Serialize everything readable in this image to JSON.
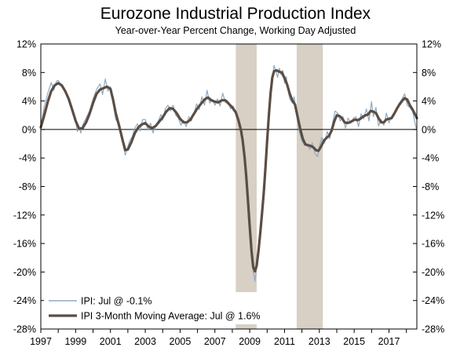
{
  "chart_data": {
    "type": "line",
    "title": "Eurozone Industrial Production Index",
    "subtitle": "Year-over-Year Percent Change, Working Day Adjusted",
    "xlabel": "",
    "ylabel": "",
    "ylim": [
      -28,
      12
    ],
    "y_ticks": [
      12,
      8,
      4,
      0,
      -4,
      -8,
      -12,
      -16,
      -20,
      -24,
      -28
    ],
    "y_tick_labels": [
      "12%",
      "8%",
      "4%",
      "0%",
      "-4%",
      "-8%",
      "-12%",
      "-16%",
      "-20%",
      "-24%",
      "-28%"
    ],
    "xlim": [
      1997.0,
      2018.6
    ],
    "x_ticks": [
      1997,
      1999,
      2001,
      2003,
      2005,
      2007,
      2009,
      2011,
      2013,
      2015,
      2017
    ],
    "x_tick_labels": [
      "1997",
      "1999",
      "2001",
      "2003",
      "2005",
      "2007",
      "2009",
      "2011",
      "2013",
      "2015",
      "2017"
    ],
    "recessions": [
      {
        "start": 2008.2,
        "end": 2009.4
      },
      {
        "start": 2011.7,
        "end": 2013.2
      }
    ],
    "legend_position": "bottom-left",
    "series": [
      {
        "name": "IPI: Jul @ -0.1%",
        "color": "#8eaac4",
        "style": "thin",
        "points": [
          [
            1997.0,
            0.6
          ],
          [
            1997.2,
            3.2
          ],
          [
            1997.4,
            5.1
          ],
          [
            1997.6,
            6.6
          ],
          [
            1997.75,
            5.5
          ],
          [
            1997.9,
            6.8
          ],
          [
            1998.0,
            6.9
          ],
          [
            1998.2,
            6.0
          ],
          [
            1998.4,
            5.5
          ],
          [
            1998.6,
            4.4
          ],
          [
            1998.8,
            2.9
          ],
          [
            1999.0,
            1.1
          ],
          [
            1999.1,
            -0.3
          ],
          [
            1999.2,
            0.3
          ],
          [
            1999.3,
            -0.5
          ],
          [
            1999.4,
            0.6
          ],
          [
            1999.6,
            1.6
          ],
          [
            1999.8,
            2.6
          ],
          [
            2000.0,
            4.3
          ],
          [
            2000.2,
            5.6
          ],
          [
            2000.4,
            6.4
          ],
          [
            2000.55,
            4.9
          ],
          [
            2000.7,
            7.1
          ],
          [
            2000.85,
            5.4
          ],
          [
            2001.0,
            6.0
          ],
          [
            2001.15,
            3.9
          ],
          [
            2001.3,
            1.4
          ],
          [
            2001.4,
            1.1
          ],
          [
            2001.55,
            -0.4
          ],
          [
            2001.7,
            -1.9
          ],
          [
            2001.85,
            -3.6
          ],
          [
            2001.95,
            -2.8
          ],
          [
            2002.1,
            -1.6
          ],
          [
            2002.25,
            -1.0
          ],
          [
            2002.4,
            0.2
          ],
          [
            2002.55,
            0.8
          ],
          [
            2002.7,
            -0.2
          ],
          [
            2002.85,
            1.4
          ],
          [
            2003.0,
            1.4
          ],
          [
            2003.15,
            -0.1
          ],
          [
            2003.3,
            0.9
          ],
          [
            2003.45,
            -0.5
          ],
          [
            2003.6,
            0.6
          ],
          [
            2003.75,
            1.2
          ],
          [
            2003.9,
            2.1
          ],
          [
            2004.0,
            1.3
          ],
          [
            2004.15,
            2.9
          ],
          [
            2004.3,
            3.4
          ],
          [
            2004.45,
            2.6
          ],
          [
            2004.6,
            3.4
          ],
          [
            2004.75,
            2.0
          ],
          [
            2004.9,
            1.6
          ],
          [
            2005.05,
            0.6
          ],
          [
            2005.2,
            1.3
          ],
          [
            2005.35,
            0.4
          ],
          [
            2005.5,
            1.8
          ],
          [
            2005.65,
            1.2
          ],
          [
            2005.8,
            2.3
          ],
          [
            2005.95,
            3.6
          ],
          [
            2006.1,
            2.8
          ],
          [
            2006.25,
            4.6
          ],
          [
            2006.4,
            3.4
          ],
          [
            2006.55,
            5.5
          ],
          [
            2006.7,
            3.7
          ],
          [
            2006.85,
            4.2
          ],
          [
            2007.0,
            3.4
          ],
          [
            2007.15,
            4.3
          ],
          [
            2007.3,
            3.3
          ],
          [
            2007.45,
            5.1
          ],
          [
            2007.6,
            3.8
          ],
          [
            2007.75,
            4.0
          ],
          [
            2007.9,
            2.9
          ],
          [
            2008.05,
            3.3
          ],
          [
            2008.2,
            2.3
          ],
          [
            2008.35,
            1.2
          ],
          [
            2008.5,
            -0.8
          ],
          [
            2008.6,
            -1.8
          ],
          [
            2008.7,
            -4.6
          ],
          [
            2008.8,
            -7.5
          ],
          [
            2008.9,
            -11.2
          ],
          [
            2009.0,
            -14.7
          ],
          [
            2009.1,
            -18.1
          ],
          [
            2009.2,
            -19.9
          ],
          [
            2009.3,
            -21.3
          ],
          [
            2009.4,
            -19.3
          ],
          [
            2009.5,
            -17.0
          ],
          [
            2009.6,
            -14.8
          ],
          [
            2009.7,
            -12.2
          ],
          [
            2009.8,
            -9.3
          ],
          [
            2009.9,
            -5.5
          ],
          [
            2010.0,
            -1.4
          ],
          [
            2010.1,
            2.2
          ],
          [
            2010.2,
            5.5
          ],
          [
            2010.3,
            7.3
          ],
          [
            2010.4,
            9.0
          ],
          [
            2010.5,
            8.2
          ],
          [
            2010.6,
            7.3
          ],
          [
            2010.7,
            8.6
          ],
          [
            2010.8,
            7.7
          ],
          [
            2010.9,
            8.3
          ],
          [
            2011.0,
            6.5
          ],
          [
            2011.1,
            7.4
          ],
          [
            2011.2,
            5.5
          ],
          [
            2011.3,
            4.3
          ],
          [
            2011.45,
            3.7
          ],
          [
            2011.55,
            4.6
          ],
          [
            2011.7,
            1.9
          ],
          [
            2011.85,
            -0.3
          ],
          [
            2012.0,
            -1.6
          ],
          [
            2012.15,
            -2.2
          ],
          [
            2012.3,
            -2.0
          ],
          [
            2012.45,
            -2.8
          ],
          [
            2012.6,
            -1.9
          ],
          [
            2012.75,
            -3.4
          ],
          [
            2012.9,
            -3.8
          ],
          [
            2013.0,
            -2.4
          ],
          [
            2013.15,
            -1.1
          ],
          [
            2013.3,
            -1.9
          ],
          [
            2013.45,
            -0.3
          ],
          [
            2013.6,
            -1.3
          ],
          [
            2013.75,
            0.7
          ],
          [
            2013.9,
            2.6
          ],
          [
            2014.05,
            2.3
          ],
          [
            2014.2,
            1.2
          ],
          [
            2014.35,
            1.8
          ],
          [
            2014.5,
            0.2
          ],
          [
            2014.65,
            1.6
          ],
          [
            2014.8,
            0.9
          ],
          [
            2014.95,
            1.6
          ],
          [
            2015.1,
            1.8
          ],
          [
            2015.25,
            0.4
          ],
          [
            2015.4,
            2.2
          ],
          [
            2015.55,
            1.5
          ],
          [
            2015.7,
            2.9
          ],
          [
            2015.85,
            1.2
          ],
          [
            2016.0,
            3.9
          ],
          [
            2016.1,
            1.8
          ],
          [
            2016.25,
            3.1
          ],
          [
            2016.4,
            0.5
          ],
          [
            2016.55,
            1.4
          ],
          [
            2016.7,
            0.6
          ],
          [
            2016.85,
            2.3
          ],
          [
            2017.0,
            0.9
          ],
          [
            2017.15,
            1.8
          ],
          [
            2017.3,
            2.4
          ],
          [
            2017.45,
            2.9
          ],
          [
            2017.6,
            3.7
          ],
          [
            2017.75,
            4.3
          ],
          [
            2017.9,
            5.0
          ],
          [
            2018.05,
            3.4
          ],
          [
            2018.2,
            3.1
          ],
          [
            2018.35,
            2.6
          ],
          [
            2018.5,
            0.8
          ],
          [
            2018.6,
            -0.1
          ]
        ]
      },
      {
        "name": "IPI 3-Month Moving Average: Jul @ 1.6%",
        "color": "#5a4d44",
        "style": "thick",
        "points": [
          [
            1997.0,
            0.3
          ],
          [
            1997.2,
            2.0
          ],
          [
            1997.4,
            3.9
          ],
          [
            1997.6,
            5.4
          ],
          [
            1997.8,
            6.2
          ],
          [
            1998.0,
            6.5
          ],
          [
            1998.2,
            6.2
          ],
          [
            1998.4,
            5.4
          ],
          [
            1998.6,
            4.3
          ],
          [
            1998.8,
            2.8
          ],
          [
            1999.0,
            1.2
          ],
          [
            1999.2,
            0.1
          ],
          [
            1999.4,
            0.2
          ],
          [
            1999.6,
            1.0
          ],
          [
            1999.8,
            2.2
          ],
          [
            2000.0,
            3.7
          ],
          [
            2000.2,
            5.0
          ],
          [
            2000.4,
            5.6
          ],
          [
            2000.6,
            5.8
          ],
          [
            2000.8,
            6.0
          ],
          [
            2001.0,
            5.7
          ],
          [
            2001.15,
            4.2
          ],
          [
            2001.3,
            2.3
          ],
          [
            2001.5,
            0.5
          ],
          [
            2001.7,
            -1.5
          ],
          [
            2001.85,
            -2.9
          ],
          [
            2002.0,
            -2.8
          ],
          [
            2002.2,
            -1.8
          ],
          [
            2002.4,
            -0.5
          ],
          [
            2002.6,
            0.3
          ],
          [
            2002.8,
            0.7
          ],
          [
            2003.0,
            0.9
          ],
          [
            2003.2,
            0.4
          ],
          [
            2003.4,
            0.2
          ],
          [
            2003.6,
            0.5
          ],
          [
            2003.8,
            1.1
          ],
          [
            2004.0,
            1.7
          ],
          [
            2004.2,
            2.5
          ],
          [
            2004.4,
            3.0
          ],
          [
            2004.6,
            2.9
          ],
          [
            2004.8,
            2.3
          ],
          [
            2005.0,
            1.5
          ],
          [
            2005.2,
            1.0
          ],
          [
            2005.4,
            1.0
          ],
          [
            2005.6,
            1.4
          ],
          [
            2005.8,
            2.2
          ],
          [
            2006.0,
            3.0
          ],
          [
            2006.2,
            3.6
          ],
          [
            2006.4,
            4.2
          ],
          [
            2006.6,
            4.5
          ],
          [
            2006.8,
            4.1
          ],
          [
            2007.0,
            3.9
          ],
          [
            2007.2,
            3.8
          ],
          [
            2007.4,
            4.1
          ],
          [
            2007.6,
            4.1
          ],
          [
            2007.8,
            3.6
          ],
          [
            2008.0,
            3.1
          ],
          [
            2008.2,
            2.4
          ],
          [
            2008.35,
            1.3
          ],
          [
            2008.5,
            -0.1
          ],
          [
            2008.6,
            -1.6
          ],
          [
            2008.7,
            -3.8
          ],
          [
            2008.8,
            -6.6
          ],
          [
            2008.9,
            -10.0
          ],
          [
            2009.0,
            -13.6
          ],
          [
            2009.1,
            -16.9
          ],
          [
            2009.2,
            -19.3
          ],
          [
            2009.3,
            -19.9
          ],
          [
            2009.4,
            -19.1
          ],
          [
            2009.5,
            -17.1
          ],
          [
            2009.6,
            -14.7
          ],
          [
            2009.7,
            -12.0
          ],
          [
            2009.8,
            -9.0
          ],
          [
            2009.9,
            -5.5
          ],
          [
            2010.0,
            -1.6
          ],
          [
            2010.1,
            2.0
          ],
          [
            2010.2,
            5.1
          ],
          [
            2010.3,
            7.3
          ],
          [
            2010.4,
            8.2
          ],
          [
            2010.55,
            8.3
          ],
          [
            2010.7,
            8.1
          ],
          [
            2010.85,
            8.0
          ],
          [
            2011.0,
            7.2
          ],
          [
            2011.15,
            6.3
          ],
          [
            2011.3,
            5.0
          ],
          [
            2011.45,
            4.1
          ],
          [
            2011.6,
            3.5
          ],
          [
            2011.75,
            1.8
          ],
          [
            2011.9,
            0.1
          ],
          [
            2012.05,
            -1.3
          ],
          [
            2012.2,
            -2.1
          ],
          [
            2012.35,
            -2.2
          ],
          [
            2012.5,
            -2.3
          ],
          [
            2012.65,
            -2.5
          ],
          [
            2012.8,
            -2.9
          ],
          [
            2012.95,
            -3.0
          ],
          [
            2013.1,
            -2.4
          ],
          [
            2013.25,
            -1.6
          ],
          [
            2013.4,
            -1.2
          ],
          [
            2013.55,
            -0.9
          ],
          [
            2013.7,
            -0.2
          ],
          [
            2013.85,
            1.1
          ],
          [
            2014.0,
            2.0
          ],
          [
            2014.15,
            1.9
          ],
          [
            2014.3,
            1.6
          ],
          [
            2014.45,
            1.0
          ],
          [
            2014.6,
            0.9
          ],
          [
            2014.75,
            1.0
          ],
          [
            2014.9,
            1.2
          ],
          [
            2015.05,
            1.4
          ],
          [
            2015.2,
            1.3
          ],
          [
            2015.35,
            1.5
          ],
          [
            2015.5,
            1.8
          ],
          [
            2015.65,
            2.0
          ],
          [
            2015.8,
            2.1
          ],
          [
            2015.95,
            2.6
          ],
          [
            2016.1,
            2.5
          ],
          [
            2016.25,
            2.3
          ],
          [
            2016.4,
            1.6
          ],
          [
            2016.55,
            1.0
          ],
          [
            2016.7,
            1.0
          ],
          [
            2016.85,
            1.4
          ],
          [
            2017.0,
            1.5
          ],
          [
            2017.15,
            1.6
          ],
          [
            2017.3,
            2.2
          ],
          [
            2017.45,
            2.9
          ],
          [
            2017.6,
            3.5
          ],
          [
            2017.75,
            4.0
          ],
          [
            2017.9,
            4.4
          ],
          [
            2018.05,
            4.2
          ],
          [
            2018.2,
            3.4
          ],
          [
            2018.35,
            2.8
          ],
          [
            2018.5,
            2.1
          ],
          [
            2018.6,
            1.6
          ]
        ]
      }
    ]
  }
}
